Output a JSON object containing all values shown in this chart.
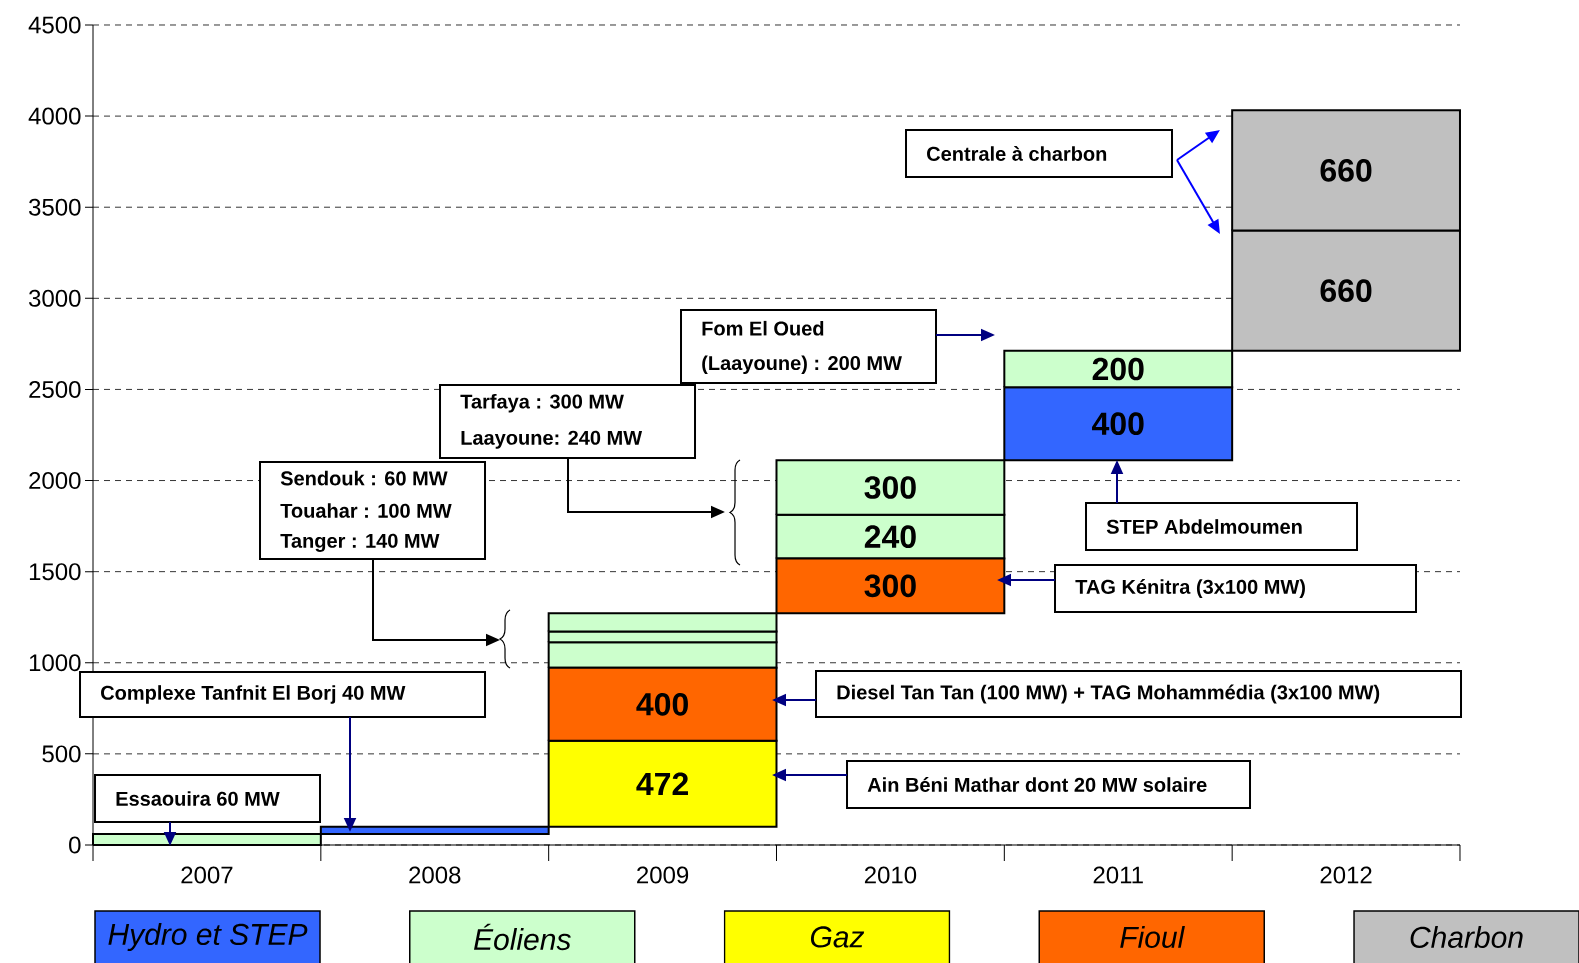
{
  "chart_data": {
    "type": "bar",
    "categories": [
      "2007",
      "2008",
      "2009",
      "2010",
      "2011",
      "2012"
    ],
    "ylim": [
      0,
      4500
    ],
    "yticks": [
      0,
      500,
      1000,
      1500,
      2000,
      2500,
      3000,
      3500,
      4000,
      4500
    ],
    "grid": "y",
    "legend": "bottom",
    "series": [
      {
        "name": "Hydro et STEP",
        "color": "#3366ff",
        "values": [
          null,
          40,
          null,
          null,
          400,
          null
        ],
        "base": [
          null,
          60,
          null,
          null,
          2112,
          null
        ],
        "value_labels": [
          null,
          null,
          null,
          null,
          "400",
          null
        ]
      },
      {
        "name": "Éoliens",
        "color": "#ccffcc",
        "values": [
          60,
          null,
          140,
          240,
          200,
          null
        ],
        "base": [
          0,
          null,
          972,
          1572,
          2512,
          null
        ],
        "value_labels": [
          null,
          null,
          null,
          "240",
          "200",
          null
        ]
      },
      {
        "color": "#ccffcc",
        "values": [
          null,
          null,
          60,
          300,
          null,
          null
        ],
        "base": [
          null,
          null,
          1112,
          1812,
          null,
          null
        ],
        "value_labels": [
          null,
          null,
          null,
          "300",
          null,
          null
        ]
      },
      {
        "color": "#ccffcc",
        "values": [
          null,
          null,
          100,
          null,
          null,
          null
        ],
        "base": [
          null,
          null,
          1172,
          null,
          null,
          null
        ]
      },
      {
        "name": "Gaz",
        "color": "#ffff00",
        "values": [
          null,
          null,
          472,
          null,
          null,
          null
        ],
        "base": [
          null,
          null,
          100,
          null,
          null,
          null
        ],
        "value_labels": [
          null,
          null,
          "472",
          null,
          null,
          null
        ]
      },
      {
        "name": "Fioul",
        "color": "#ff6600",
        "values": [
          null,
          null,
          400,
          300,
          null,
          null
        ],
        "base": [
          null,
          null,
          572,
          1272,
          null,
          null
        ],
        "value_labels": [
          null,
          null,
          "400",
          "300",
          null,
          null
        ]
      },
      {
        "name": "Charbon",
        "color": "#c0c0c0",
        "values": [
          null,
          null,
          null,
          null,
          null,
          660
        ],
        "base": [
          null,
          null,
          null,
          null,
          null,
          2712
        ],
        "value_labels": [
          null,
          null,
          null,
          null,
          null,
          "660"
        ]
      },
      {
        "color": "#c0c0c0",
        "values": [
          null,
          null,
          null,
          null,
          null,
          660
        ],
        "base": [
          null,
          null,
          null,
          null,
          null,
          3372
        ],
        "value_labels": [
          null,
          null,
          null,
          null,
          null,
          "660"
        ]
      }
    ],
    "annotations": [
      "Essaouira 60 MW",
      "Complexe Tanfnit El Borj 40 MW",
      "Sendouk : 60 MW",
      "Touahar : 100 MW",
      "Tanger : 140 MW",
      "Tarfaya : 300 MW",
      "Laayoune: 240 MW",
      "Fom El Oued",
      "(Laayoune) : 200 MW",
      "Centrale à charbon",
      "STEP Abdelmoumen",
      "TAG Kénitra (3x100 MW)",
      "Diesel Tan Tan (100 MW) + TAG Mohammédia (3x100 MW)",
      "Ain Béni Mathar dont 20 MW solaire"
    ]
  }
}
